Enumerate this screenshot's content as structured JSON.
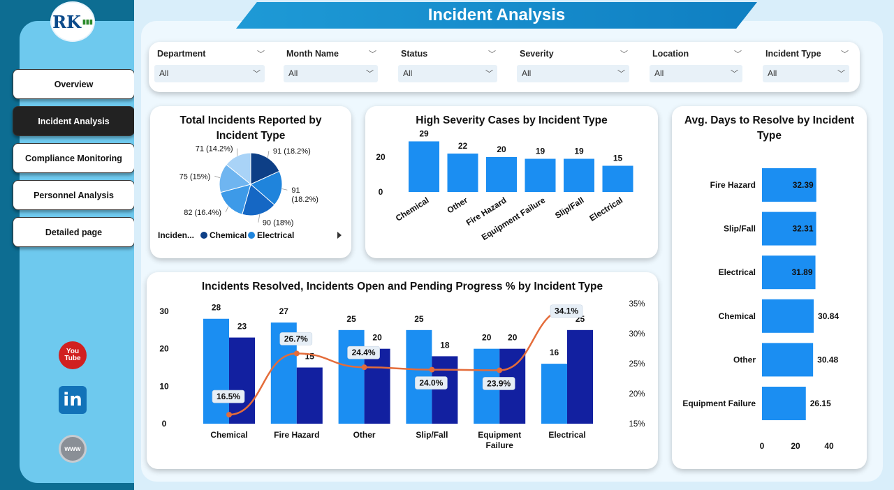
{
  "app": {
    "title": "Incident Analysis",
    "logo_text": "RK",
    "logo_sub": "▮▮▮"
  },
  "nav": {
    "items": [
      {
        "label": "Overview",
        "active": false
      },
      {
        "label": "Incident Analysis",
        "active": true
      },
      {
        "label": "Compliance Monitoring",
        "active": false
      },
      {
        "label": "Personnel Analysis",
        "active": false
      },
      {
        "label": "Detailed page",
        "active": false
      }
    ]
  },
  "social": {
    "youtube": "You\nTube",
    "linkedin": "in",
    "web": "www"
  },
  "filters": [
    {
      "label": "Department",
      "value": "All"
    },
    {
      "label": "Month Name",
      "value": "All"
    },
    {
      "label": "Status",
      "value": "All"
    },
    {
      "label": "Severity",
      "value": "All"
    },
    {
      "label": "Location",
      "value": "All"
    },
    {
      "label": "Incident Type",
      "value": "All"
    }
  ],
  "chart_data": [
    {
      "type": "pie",
      "title": "Total Incidents Reported by Incident Type",
      "slices": [
        {
          "name": "Chemical",
          "value": 91,
          "label": "91 (18.2%)",
          "color": "#0d3f86"
        },
        {
          "name": "Electrical",
          "value": 91,
          "label": "91\n(18.2%)",
          "color": "#1f84dc"
        },
        {
          "name": "Equipment Failure",
          "value": 90,
          "label": "90 (18%)",
          "color": "#1567c4"
        },
        {
          "name": "Fire Hazard",
          "value": 82,
          "label": "82 (16.4%)",
          "color": "#3d9ae8"
        },
        {
          "name": "Other",
          "value": 75,
          "label": "75 (15%)",
          "color": "#6fb5f0"
        },
        {
          "name": "Slip/Fall",
          "value": 71,
          "label": "71 (14.2%)",
          "color": "#a9d3f7"
        }
      ],
      "legend": {
        "title": "Inciden...",
        "entries": [
          "Chemical",
          "Electrical"
        ],
        "colors": [
          "#0d3f86",
          "#1f84dc"
        ],
        "position": "bottom"
      }
    },
    {
      "type": "bar",
      "title": "High Severity Cases by Incident Type",
      "categories": [
        "Chemical",
        "Other",
        "Fire Hazard",
        "Equipment Failure",
        "Slip/Fall",
        "Electrical"
      ],
      "values": [
        29,
        22,
        20,
        19,
        19,
        15
      ],
      "yticks": [
        0,
        20
      ],
      "ylim": [
        0,
        32
      ],
      "color": "#1b8ef2",
      "grid": false
    },
    {
      "type": "bar",
      "orientation": "horizontal",
      "title": "Avg. Days to Resolve by Incident Type",
      "categories": [
        "Fire Hazard",
        "Slip/Fall",
        "Electrical",
        "Chemical",
        "Other",
        "Equipment Failure"
      ],
      "values": [
        32.39,
        32.31,
        31.89,
        30.84,
        30.48,
        26.15
      ],
      "value_labels": [
        "32.39",
        "32.31",
        "31.89",
        "30.84",
        "30.48",
        "26.15"
      ],
      "xticks": [
        0,
        20,
        40
      ],
      "xlim": [
        0,
        50
      ],
      "color": "#1b8ef2",
      "grid": false
    },
    {
      "type": "bar",
      "title": "Incidents Resolved, Incidents Open and Pending Progress % by Incident Type",
      "categories": [
        "Chemical",
        "Fire Hazard",
        "Other",
        "Slip/Fall",
        "Equipment\nFailure",
        "Electrical"
      ],
      "series": [
        {
          "kind": "bar",
          "values": [
            28,
            27,
            25,
            25,
            20,
            16
          ],
          "color": "#1b8ef2"
        },
        {
          "kind": "bar",
          "values": [
            23,
            15,
            20,
            18,
            20,
            25
          ],
          "color": "#1220a0"
        },
        {
          "kind": "line",
          "axis": "right",
          "values": [
            16.5,
            26.7,
            24.4,
            24.0,
            23.9,
            34.1
          ],
          "labels": [
            "16.5%",
            "26.7%",
            "24.4%",
            "24.0%",
            "23.9%",
            "34.1%"
          ],
          "color": "#e46c3a"
        }
      ],
      "yticks_left": [
        0,
        10,
        20,
        30
      ],
      "ylim_left": [
        0,
        30
      ],
      "yticks_right": [
        "15%",
        "20%",
        "25%",
        "30%",
        "35%"
      ],
      "ylim_right": [
        15,
        35
      ],
      "grid": false
    }
  ]
}
